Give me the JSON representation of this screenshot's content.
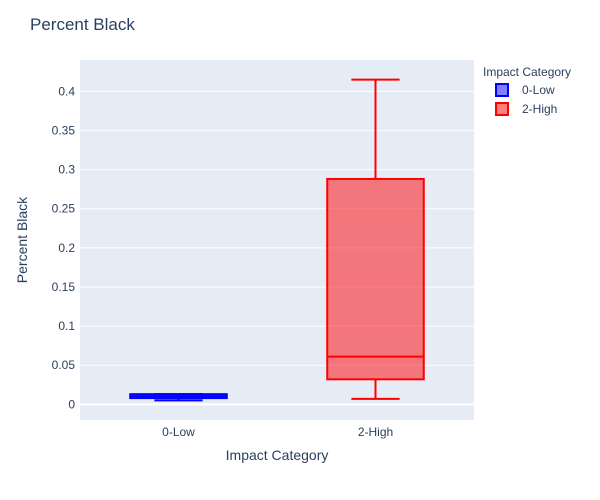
{
  "chart_data": {
    "type": "box",
    "title": "Percent Black",
    "xlabel": "Impact Category",
    "ylabel": "Percent Black",
    "categories": [
      "0-Low",
      "2-High"
    ],
    "ylim": [
      -0.02,
      0.44
    ],
    "yticks": [
      0,
      0.05,
      0.1,
      0.15,
      0.2,
      0.25,
      0.3,
      0.35,
      0.4
    ],
    "ytick_labels": [
      "0",
      "0.05",
      "0.1",
      "0.15",
      "0.2",
      "0.25",
      "0.3",
      "0.35",
      "0.4"
    ],
    "grid": true,
    "legend": {
      "title": "Impact Category",
      "placement": "top-right"
    },
    "series": [
      {
        "name": "0-Low",
        "category": "0-Low",
        "min": 0.005,
        "q1": 0.008,
        "median": 0.0105,
        "q3": 0.013,
        "max": 0.013,
        "color": "#0000ff",
        "fill": "rgba(0,0,255,0.5)"
      },
      {
        "name": "2-High",
        "category": "2-High",
        "min": 0.007,
        "q1": 0.032,
        "median": 0.061,
        "q3": 0.288,
        "max": 0.415,
        "color": "#ff0000",
        "fill": "rgba(255,0,0,0.5)"
      }
    ],
    "colors": {
      "plot_bg": "#e5ecf6",
      "grid": "#ffffff",
      "text": "#2a3f5f"
    }
  }
}
